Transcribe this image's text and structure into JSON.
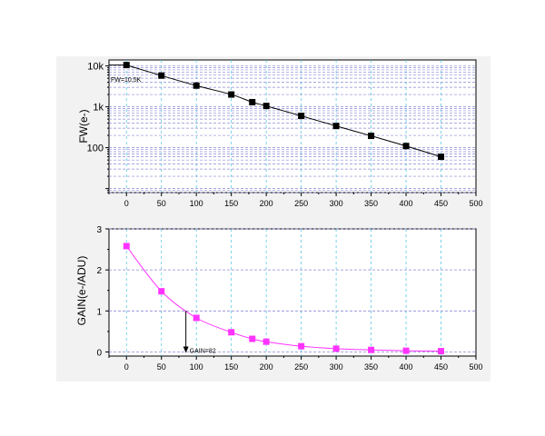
{
  "chart_data": [
    {
      "type": "line",
      "ylabel": "FW(e-)",
      "xlabel": "",
      "x_ticks": [
        "0",
        "50",
        "100",
        "150",
        "200",
        "250",
        "300",
        "350",
        "400",
        "450",
        "500"
      ],
      "y_ticks": [
        "100",
        "1k",
        "10k"
      ],
      "y_scale": "log",
      "xlim": [
        -25,
        500
      ],
      "ylim": [
        8,
        14000
      ],
      "grid": true,
      "grid_colors": {
        "vertical": "#5bc8e6",
        "horizontal": "#8a8ad6"
      },
      "series": [
        {
          "color": "#000000",
          "marker": "square",
          "x": [
            0,
            50,
            100,
            150,
            180,
            200,
            250,
            300,
            350,
            400,
            450
          ],
          "y": [
            10500,
            5800,
            3300,
            2000,
            1300,
            1050,
            600,
            340,
            195,
            110,
            60
          ]
        }
      ],
      "annotation": {
        "text": "FW=10.5K",
        "x": -20,
        "y": 10500
      }
    },
    {
      "type": "line",
      "ylabel": "GAIN(e-/ADU)",
      "xlabel": "",
      "x_ticks": [
        "0",
        "50",
        "100",
        "150",
        "200",
        "250",
        "300",
        "350",
        "400",
        "450",
        "500"
      ],
      "y_ticks": [
        "0",
        "1",
        "2",
        "3"
      ],
      "xlim": [
        -25,
        500
      ],
      "ylim": [
        -0.1,
        3
      ],
      "grid": true,
      "grid_colors": {
        "vertical": "#5bc8e6",
        "horizontal": "#8a8ad6"
      },
      "series": [
        {
          "color": "#ff33ff",
          "marker": "square",
          "x": [
            0,
            50,
            100,
            150,
            180,
            200,
            250,
            300,
            350,
            400,
            450
          ],
          "y": [
            2.58,
            1.48,
            0.83,
            0.48,
            0.32,
            0.25,
            0.14,
            0.08,
            0.05,
            0.03,
            0.02
          ]
        }
      ],
      "annotation": {
        "text": "GAIN=82",
        "x": 85,
        "y": 1.0,
        "y_arrow_end": 0.0
      }
    }
  ]
}
